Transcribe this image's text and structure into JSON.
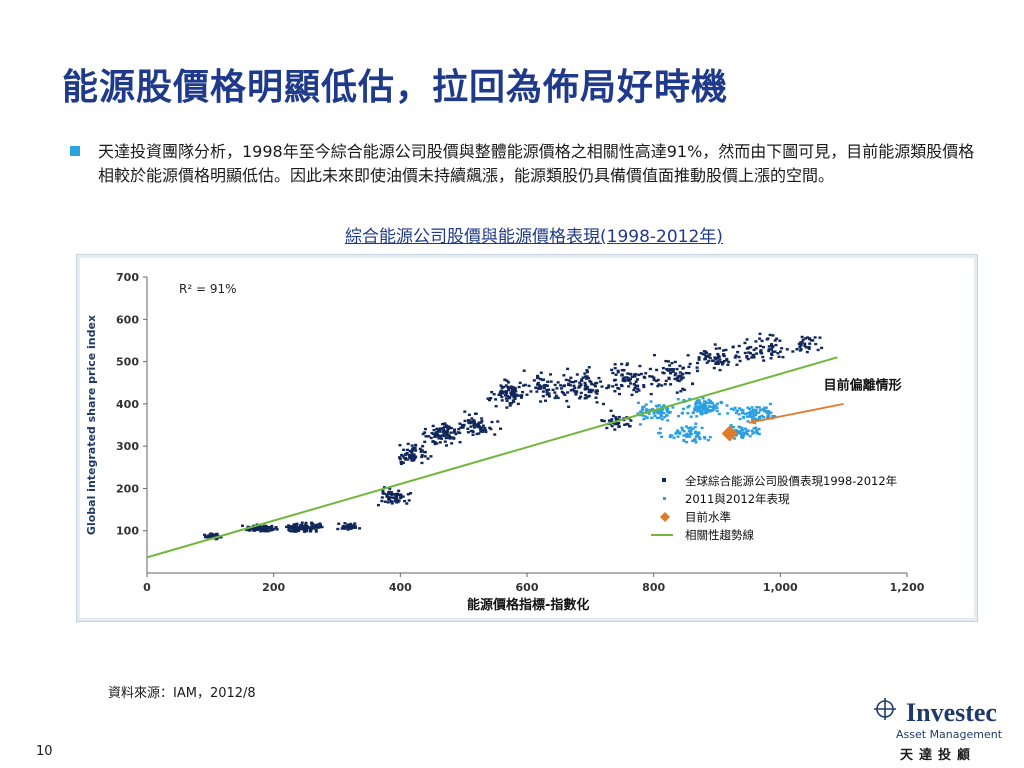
{
  "slide": {
    "title": "能源股價格明顯低估，拉回為佈局好時機",
    "bullet": "天達投資團隊分析，1998年至今綜合能源公司股價與整體能源價格之相關性高達91%，然而由下圖可見，目前能源類股價格相較於能源價格明顯低估。因此未來即使油價未持續飆漲，能源類股仍具備價值面推動股價上漲的空間。",
    "chart_heading": "綜合能源公司股價與能源價格表現(1998-2012年)",
    "source": "資料來源：IAM，2012/8",
    "page_number": "10"
  },
  "logo": {
    "name": "Investec",
    "sub": "Asset Management",
    "cn": "天達投顧"
  },
  "colors": {
    "title": "#1f3a8a",
    "bullet": "#2aa5dd",
    "series_history": "#10275a",
    "series_recent": "#2b9fe0",
    "current_point": "#e07b2a",
    "trend": "#6fb83a",
    "deviation_arrow": "#e07b2a"
  },
  "chart_data": {
    "type": "scatter",
    "xlabel": "能源價格指標-指數化",
    "ylabel": "Global integrated share price index",
    "xlim": [
      0,
      1200
    ],
    "ylim": [
      0,
      700
    ],
    "x_ticks": [
      "0",
      "200",
      "400",
      "600",
      "800",
      "1,000",
      "1,200"
    ],
    "y_ticks": [
      "100",
      "200",
      "300",
      "400",
      "500",
      "600",
      "700"
    ],
    "annotation_r2": "R² = 91%",
    "annotation_deviation": "目前偏離情形",
    "legend": {
      "placement": "bottom-right",
      "items": [
        "全球綜合能源公司股價表現1998-2012年",
        "2011與2012年表現",
        "目前水準",
        "相關性趨勢線"
      ]
    },
    "trend_line": {
      "x": [
        0,
        1090
      ],
      "y": [
        37,
        510
      ]
    },
    "current_point": {
      "x": 920,
      "y": 330
    },
    "deviation_arrow": {
      "from": [
        1100,
        400
      ],
      "to": [
        950,
        355
      ]
    },
    "series": [
      {
        "name": "全球綜合能源公司股價表現1998-2012年",
        "clusters": [
          {
            "x": 105,
            "y": 88,
            "sx": 12,
            "sy": 6,
            "n": 40
          },
          {
            "x": 180,
            "y": 105,
            "sx": 25,
            "sy": 8,
            "n": 90
          },
          {
            "x": 250,
            "y": 108,
            "sx": 30,
            "sy": 10,
            "n": 110
          },
          {
            "x": 320,
            "y": 110,
            "sx": 20,
            "sy": 8,
            "n": 40
          },
          {
            "x": 390,
            "y": 180,
            "sx": 25,
            "sy": 20,
            "n": 60
          },
          {
            "x": 420,
            "y": 280,
            "sx": 25,
            "sy": 25,
            "n": 60
          },
          {
            "x": 470,
            "y": 330,
            "sx": 30,
            "sy": 25,
            "n": 80
          },
          {
            "x": 520,
            "y": 350,
            "sx": 30,
            "sy": 30,
            "n": 70
          },
          {
            "x": 570,
            "y": 420,
            "sx": 30,
            "sy": 30,
            "n": 80
          },
          {
            "x": 630,
            "y": 440,
            "sx": 30,
            "sy": 30,
            "n": 60
          },
          {
            "x": 690,
            "y": 440,
            "sx": 35,
            "sy": 40,
            "n": 80
          },
          {
            "x": 760,
            "y": 460,
            "sx": 35,
            "sy": 40,
            "n": 70
          },
          {
            "x": 830,
            "y": 470,
            "sx": 35,
            "sy": 40,
            "n": 70
          },
          {
            "x": 900,
            "y": 510,
            "sx": 35,
            "sy": 30,
            "n": 60
          },
          {
            "x": 980,
            "y": 530,
            "sx": 40,
            "sy": 30,
            "n": 60
          },
          {
            "x": 1050,
            "y": 540,
            "sx": 25,
            "sy": 25,
            "n": 30
          },
          {
            "x": 740,
            "y": 360,
            "sx": 30,
            "sy": 20,
            "n": 40
          }
        ]
      },
      {
        "name": "2011與2012年表現",
        "clusters": [
          {
            "x": 800,
            "y": 380,
            "sx": 35,
            "sy": 25,
            "n": 70
          },
          {
            "x": 880,
            "y": 390,
            "sx": 40,
            "sy": 20,
            "n": 90
          },
          {
            "x": 960,
            "y": 380,
            "sx": 30,
            "sy": 20,
            "n": 70
          },
          {
            "x": 850,
            "y": 330,
            "sx": 40,
            "sy": 20,
            "n": 60
          },
          {
            "x": 940,
            "y": 335,
            "sx": 30,
            "sy": 15,
            "n": 50
          }
        ]
      }
    ]
  }
}
